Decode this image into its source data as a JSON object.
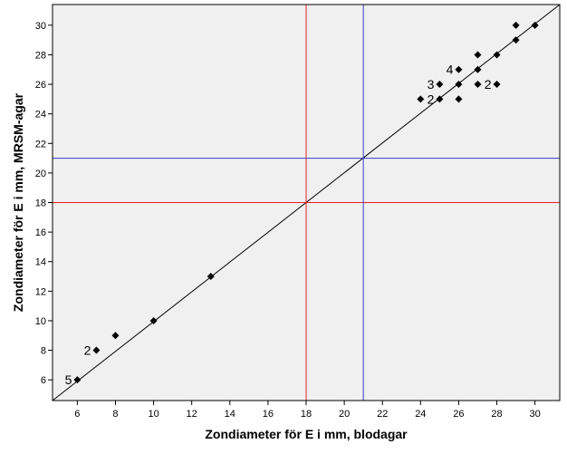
{
  "chart_data": {
    "type": "scatter",
    "xlabel": "Zondiameter för E i mm, blodagar",
    "ylabel": "Zondiameter för E i mm, MRSM-agar",
    "xlim": [
      4.7,
      31.3
    ],
    "ylim": [
      4.6,
      31.4
    ],
    "x_ticks": [
      6,
      8,
      10,
      12,
      14,
      16,
      18,
      20,
      22,
      24,
      26,
      28,
      30
    ],
    "y_ticks": [
      6,
      8,
      10,
      12,
      14,
      16,
      18,
      20,
      22,
      24,
      26,
      28,
      30
    ],
    "grid": false,
    "background_color": "#f0f0f0",
    "points": [
      {
        "x": 6,
        "y": 6
      },
      {
        "x": 7,
        "y": 8
      },
      {
        "x": 8,
        "y": 9
      },
      {
        "x": 10,
        "y": 10
      },
      {
        "x": 13,
        "y": 13
      },
      {
        "x": 24,
        "y": 25
      },
      {
        "x": 25,
        "y": 25
      },
      {
        "x": 25,
        "y": 26
      },
      {
        "x": 26,
        "y": 25
      },
      {
        "x": 26,
        "y": 26
      },
      {
        "x": 26,
        "y": 27
      },
      {
        "x": 27,
        "y": 26
      },
      {
        "x": 27,
        "y": 27
      },
      {
        "x": 27,
        "y": 28
      },
      {
        "x": 28,
        "y": 26
      },
      {
        "x": 28,
        "y": 28
      },
      {
        "x": 29,
        "y": 29
      },
      {
        "x": 29,
        "y": 30
      },
      {
        "x": 30,
        "y": 30
      }
    ],
    "point_counts": [
      {
        "label": "5",
        "x": 6,
        "y": 6
      },
      {
        "label": "2",
        "x": 7,
        "y": 8
      },
      {
        "label": "3",
        "x": 25,
        "y": 26
      },
      {
        "label": "2",
        "x": 25,
        "y": 25
      },
      {
        "label": "4",
        "x": 26,
        "y": 27
      },
      {
        "label": "2",
        "x": 28,
        "y": 26
      }
    ],
    "reference_lines": [
      {
        "type": "diagonal",
        "from": [
          4.7,
          4.6
        ],
        "to": [
          31.3,
          31.4
        ],
        "color": "#000000"
      },
      {
        "type": "vertical",
        "x": 18,
        "color": "#e8202a"
      },
      {
        "type": "horizontal",
        "y": 18,
        "color": "#e8202a"
      },
      {
        "type": "vertical",
        "x": 21,
        "color": "#3b3bc8"
      },
      {
        "type": "horizontal",
        "y": 21,
        "color": "#3b3bc8"
      }
    ]
  }
}
